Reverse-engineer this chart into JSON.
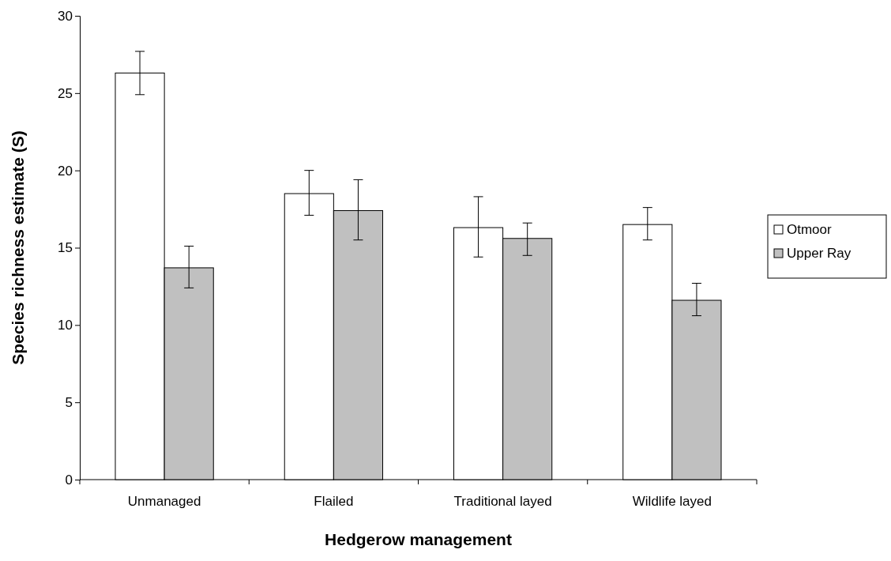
{
  "chart_data": {
    "type": "bar",
    "xlabel": "Hedgerow management",
    "ylabel": "Species richness estimate (S)",
    "categories": [
      "Unmanaged",
      "Flailed",
      "Traditional layed",
      "Wildlife layed"
    ],
    "series": [
      {
        "name": "Otmoor",
        "color": "#ffffff",
        "values": [
          26.3,
          18.5,
          16.3,
          16.5
        ],
        "errors": [
          [
            24.9,
            27.7
          ],
          [
            17.1,
            20.0
          ],
          [
            14.4,
            18.3
          ],
          [
            15.5,
            17.6
          ]
        ]
      },
      {
        "name": "Upper Ray",
        "color": "#c0c0c0",
        "values": [
          13.7,
          17.4,
          15.6,
          11.6
        ],
        "errors": [
          [
            12.4,
            15.1
          ],
          [
            15.5,
            19.4
          ],
          [
            14.5,
            16.6
          ],
          [
            10.6,
            12.7
          ]
        ]
      }
    ],
    "ylim": [
      0,
      30
    ],
    "yticks": [
      0,
      5,
      10,
      15,
      20,
      25,
      30
    ],
    "grid": false,
    "legend": "right"
  }
}
